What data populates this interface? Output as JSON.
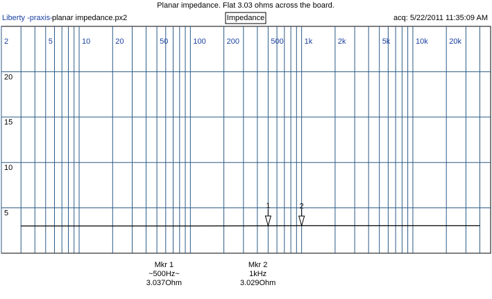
{
  "chart_data": {
    "type": "line",
    "title": "Planar impedance. Flat 3.03 ohms across the board.",
    "source": "Liberty -praxis-",
    "file": "planar impedance.px2",
    "trace_label": "Impedance",
    "acquired": "acq: 5/22/2011 11:35:09 AM",
    "log_x": true,
    "grid": true,
    "xlim": [
      2,
      50000
    ],
    "ylim": [
      0,
      25
    ],
    "xticks": [
      2,
      5,
      10,
      20,
      50,
      100,
      200,
      500,
      {
        "value": 1000,
        "label": "1k"
      },
      {
        "value": 2000,
        "label": "2k"
      },
      {
        "value": 5000,
        "label": "5k"
      },
      {
        "value": 10000,
        "label": "10k"
      },
      {
        "value": 20000,
        "label": "20k"
      }
    ],
    "xminor": [
      3,
      4,
      6,
      7,
      8,
      9,
      30,
      40,
      60,
      70,
      80,
      90,
      300,
      400,
      600,
      700,
      800,
      900,
      3000,
      4000,
      6000,
      7000,
      8000,
      9000,
      30000,
      40000
    ],
    "yticks": [
      5,
      10,
      15,
      20
    ],
    "series": [
      {
        "color": "#000000",
        "x": [
          3,
          100,
          1000,
          10000,
          40000
        ],
        "values": [
          3.0,
          3.0,
          3.03,
          3.03,
          3.03
        ]
      }
    ],
    "markers": [
      {
        "label": "1",
        "x": 500,
        "value": 3.037,
        "text": [
          "Mkr 1",
          "~500Hz~",
          "3.037Ohm"
        ]
      },
      {
        "label": "2",
        "x": 1000,
        "value": 3.029,
        "text": [
          "Mkr 2",
          "1kHz",
          "3.029Ohm"
        ]
      }
    ]
  }
}
